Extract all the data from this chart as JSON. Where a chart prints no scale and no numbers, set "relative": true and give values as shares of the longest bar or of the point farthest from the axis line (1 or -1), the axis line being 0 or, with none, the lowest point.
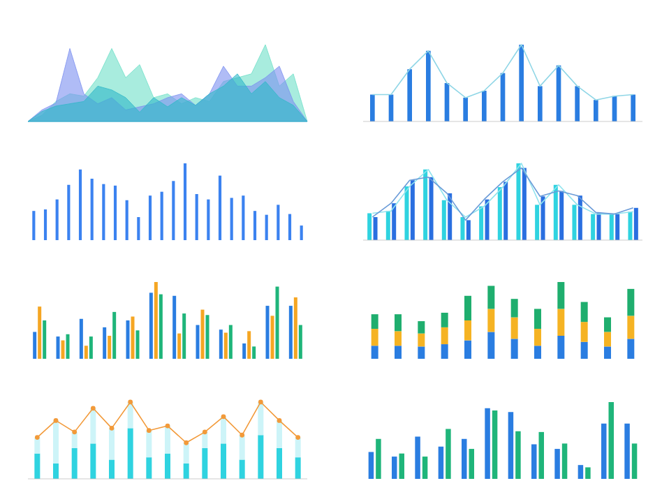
{
  "chart_data": [
    {
      "type": "area",
      "relative": true,
      "categories": [
        null,
        null,
        null,
        null,
        null,
        null,
        null,
        null,
        null,
        null,
        null,
        null,
        null,
        null,
        null,
        null,
        null,
        null,
        null,
        null,
        null
      ],
      "series": [
        {
          "color": "#6ee0c8",
          "values": [
            0,
            0.08,
            0.26,
            0.36,
            0.33,
            0.57,
            0.95,
            0.57,
            0.74,
            0.31,
            0.36,
            0.23,
            0.31,
            0.26,
            0.52,
            0.57,
            0.62,
            1,
            0.46,
            0.62,
            0
          ]
        },
        {
          "color": "#7b8ff0",
          "values": [
            0,
            0.15,
            0.24,
            0.95,
            0.36,
            0.23,
            0.31,
            0.15,
            0.19,
            0.23,
            0.31,
            0.36,
            0.21,
            0.36,
            0.72,
            0.46,
            0.46,
            0.57,
            0.72,
            0.26,
            0
          ]
        },
        {
          "color": "#2fb8c8",
          "values": [
            0,
            0.13,
            0.2,
            0.23,
            0.26,
            0.46,
            0.41,
            0.31,
            0.12,
            0.31,
            0.19,
            0.31,
            0.21,
            0.36,
            0.46,
            0.62,
            0.36,
            0.52,
            0.31,
            0.21,
            0
          ]
        }
      ]
    },
    {
      "type": "bar",
      "relative": true,
      "categories": [
        null,
        null,
        null,
        null,
        null,
        null,
        null,
        null,
        null,
        null,
        null,
        null,
        null,
        null,
        null
      ],
      "series": [
        {
          "color": "#2a7de1",
          "values": [
            0.35,
            0.35,
            0.68,
            0.92,
            0.5,
            0.31,
            0.4,
            0.63,
            1,
            0.46,
            0.73,
            0.46,
            0.28,
            0.33,
            0.35
          ]
        }
      ]
    },
    {
      "type": "line",
      "relative": true,
      "categories": [
        null,
        null,
        null,
        null,
        null,
        null,
        null,
        null,
        null,
        null,
        null,
        null,
        null,
        null,
        null
      ],
      "series": [
        {
          "color": "#8fd6e6",
          "values": [
            0.35,
            0.35,
            0.68,
            0.92,
            0.5,
            0.31,
            0.4,
            0.63,
            1,
            0.46,
            0.73,
            0.46,
            0.28,
            0.33,
            0.35
          ]
        }
      ]
    },
    {
      "type": "bar",
      "relative": true,
      "categories": [
        null,
        null,
        null,
        null,
        null,
        null,
        null,
        null,
        null,
        null,
        null,
        null,
        null,
        null,
        null,
        null,
        null,
        null,
        null,
        null,
        null,
        null,
        null,
        null
      ],
      "series": [
        {
          "color": "#3b82f0",
          "values": [
            0.38,
            0.4,
            0.53,
            0.72,
            0.92,
            0.8,
            0.73,
            0.71,
            0.52,
            0.3,
            0.58,
            0.63,
            0.77,
            1,
            0.6,
            0.53,
            0.84,
            0.55,
            0.58,
            0.38,
            0.33,
            0.46,
            0.34,
            0.19
          ]
        }
      ]
    },
    {
      "type": "bar",
      "relative": true,
      "categories": [
        null,
        null,
        null,
        null,
        null,
        null,
        null,
        null,
        null,
        null,
        null,
        null,
        null,
        null,
        null
      ],
      "series": [
        {
          "color": "#2fd3e0",
          "values": [
            0.35,
            0.38,
            0.7,
            0.92,
            0.52,
            0.3,
            0.44,
            0.69,
            1,
            0.46,
            0.72,
            0.46,
            0.34,
            0.34,
            0.37
          ]
        },
        {
          "color": "#2a6fe0",
          "values": [
            0.3,
            0.48,
            0.78,
            0.82,
            0.61,
            0.26,
            0.53,
            0.76,
            0.94,
            0.57,
            0.64,
            0.58,
            0.36,
            0.34,
            0.42
          ]
        }
      ]
    },
    {
      "type": "line",
      "relative": true,
      "categories": [
        null,
        null,
        null,
        null,
        null,
        null,
        null,
        null,
        null,
        null,
        null,
        null,
        null,
        null,
        null
      ],
      "series": [
        {
          "color": "#8fe3ee",
          "values": [
            0.35,
            0.38,
            0.7,
            0.92,
            0.52,
            0.3,
            0.44,
            0.69,
            1,
            0.46,
            0.72,
            0.46,
            0.34,
            0.34,
            0.37
          ]
        },
        {
          "color": "#6a9bd8",
          "values": [
            0.3,
            0.48,
            0.78,
            0.82,
            0.61,
            0.26,
            0.53,
            0.76,
            0.94,
            0.57,
            0.64,
            0.58,
            0.36,
            0.34,
            0.42
          ]
        }
      ]
    },
    {
      "type": "bar",
      "relative": true,
      "categories": [
        null,
        null,
        null,
        null,
        null,
        null,
        null,
        null,
        null,
        null,
        null,
        null
      ],
      "series": [
        {
          "color": "#2a7de1",
          "values": [
            0.35,
            0.29,
            0.52,
            0.41,
            0.5,
            0.86,
            0.82,
            0.44,
            0.38,
            0.2,
            0.69,
            0.69
          ]
        },
        {
          "color": "#f5a623",
          "values": [
            0.68,
            0.24,
            0.17,
            0.3,
            0.55,
            1,
            0.33,
            0.64,
            0.34,
            0.36,
            0.56,
            0.8
          ]
        },
        {
          "color": "#1fb57a",
          "values": [
            0.5,
            0.32,
            0.29,
            0.61,
            0.37,
            0.84,
            0.59,
            0.57,
            0.44,
            0.16,
            0.94,
            0.44
          ]
        }
      ]
    },
    {
      "type": "bar",
      "relative": true,
      "stacked": true,
      "categories": [
        null,
        null,
        null,
        null,
        null,
        null,
        null,
        null,
        null,
        null,
        null,
        null
      ],
      "series": [
        {
          "color": "#2a7de1",
          "values": [
            0.17,
            0.17,
            0.16,
            0.19,
            0.24,
            0.35,
            0.26,
            0.17,
            0.3,
            0.22,
            0.16,
            0.26
          ]
        },
        {
          "color": "#f5b323",
          "values": [
            0.22,
            0.19,
            0.17,
            0.22,
            0.26,
            0.3,
            0.28,
            0.22,
            0.35,
            0.26,
            0.19,
            0.3
          ]
        },
        {
          "color": "#1fae6e",
          "values": [
            0.19,
            0.22,
            0.16,
            0.19,
            0.32,
            0.3,
            0.24,
            0.26,
            0.35,
            0.26,
            0.19,
            0.35
          ]
        }
      ]
    },
    {
      "type": "bar",
      "relative": true,
      "stacked": true,
      "categories": [
        null,
        null,
        null,
        null,
        null,
        null,
        null,
        null,
        null,
        null,
        null,
        null,
        null,
        null,
        null
      ],
      "series": [
        {
          "color": "#2fd3e0",
          "values": [
            0.33,
            0.2,
            0.4,
            0.46,
            0.25,
            0.66,
            0.28,
            0.33,
            0.2,
            0.4,
            0.46,
            0.25,
            0.57,
            0.4,
            0.28
          ]
        },
        {
          "color": "#cdf4f8",
          "values": [
            0.21,
            0.56,
            0.21,
            0.46,
            0.41,
            0.34,
            0.35,
            0.36,
            0.27,
            0.21,
            0.35,
            0.32,
            0.43,
            0.36,
            0.26
          ]
        }
      ]
    },
    {
      "type": "line",
      "relative": true,
      "marker": "circle",
      "categories": [
        null,
        null,
        null,
        null,
        null,
        null,
        null,
        null,
        null,
        null,
        null,
        null,
        null,
        null,
        null
      ],
      "series": [
        {
          "color": "#f29a3a",
          "values": [
            0.54,
            0.76,
            0.61,
            0.92,
            0.66,
            1,
            0.63,
            0.69,
            0.47,
            0.61,
            0.81,
            0.57,
            1,
            0.76,
            0.54
          ]
        }
      ]
    },
    {
      "type": "bar",
      "relative": true,
      "categories": [
        null,
        null,
        null,
        null,
        null,
        null,
        null,
        null,
        null,
        null,
        null,
        null
      ],
      "series": [
        {
          "color": "#2a7de1",
          "values": [
            0.35,
            0.29,
            0.55,
            0.42,
            0.52,
            0.92,
            0.87,
            0.45,
            0.39,
            0.18,
            0.72,
            0.72
          ]
        },
        {
          "color": "#1fb57a",
          "values": [
            0.52,
            0.33,
            0.29,
            0.65,
            0.39,
            0.89,
            0.62,
            0.61,
            0.46,
            0.15,
            1,
            0.46
          ]
        }
      ]
    }
  ]
}
